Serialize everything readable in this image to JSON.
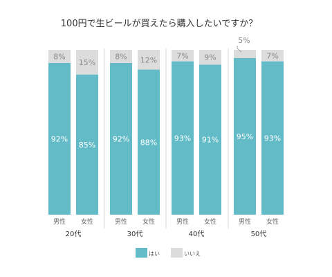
{
  "chart_data": {
    "type": "bar",
    "stacked": true,
    "title": "100円で生ビールが買えたら購入したいですか？",
    "groups": [
      "20代",
      "30代",
      "40代",
      "50代"
    ],
    "subcategories": [
      "男性",
      "女性"
    ],
    "series": [
      {
        "name": "はい",
        "color": "#62bbc6",
        "values": [
          92,
          85,
          92,
          88,
          93,
          91,
          95,
          93
        ]
      },
      {
        "name": "いいえ",
        "color": "#dcdcdc",
        "values": [
          8,
          15,
          8,
          12,
          7,
          9,
          5,
          7
        ]
      }
    ],
    "value_unit": "%",
    "ylim": [
      0,
      100
    ],
    "legend_position": "bottom",
    "grid": false
  }
}
